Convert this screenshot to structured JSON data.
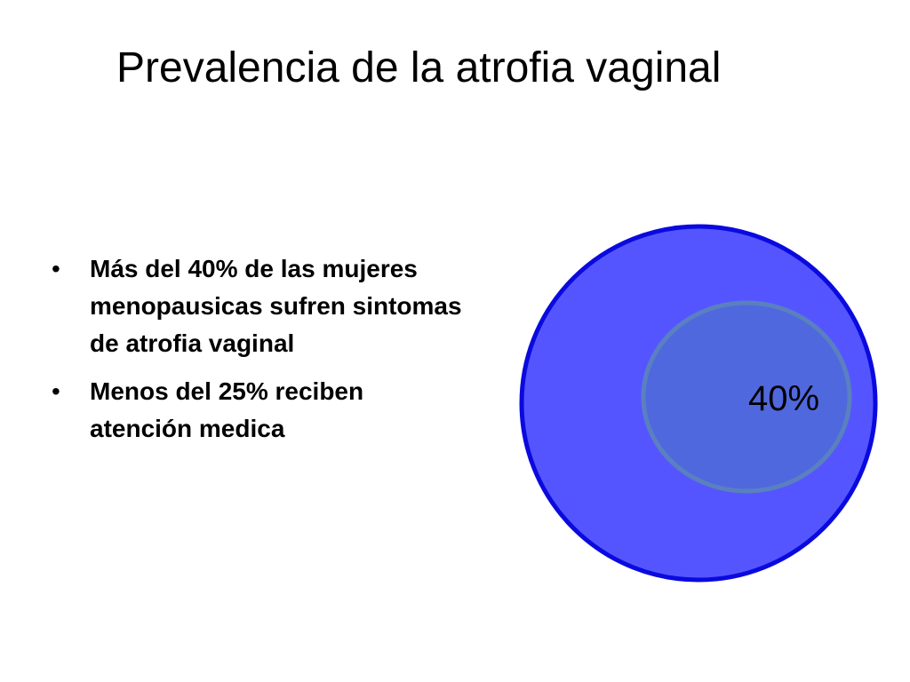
{
  "slide": {
    "title": "Prevalencia de la atrofia vaginal",
    "bullets": [
      {
        "marker": "•",
        "text": "Más del 40% de las mujeres menopausicas sufren  sintomas de atrofia vaginal"
      },
      {
        "marker": "•",
        "text": "Menos del 25% reciben atención medica"
      }
    ]
  },
  "diagram": {
    "outer_circle_color": "#5555ff",
    "outer_circle_stroke": "#0a0adf",
    "inner_ellipse_color": "#5068dd",
    "inner_ellipse_stroke": "#5a80c0",
    "inner_label": "40%",
    "inner_fraction": 0.4
  }
}
